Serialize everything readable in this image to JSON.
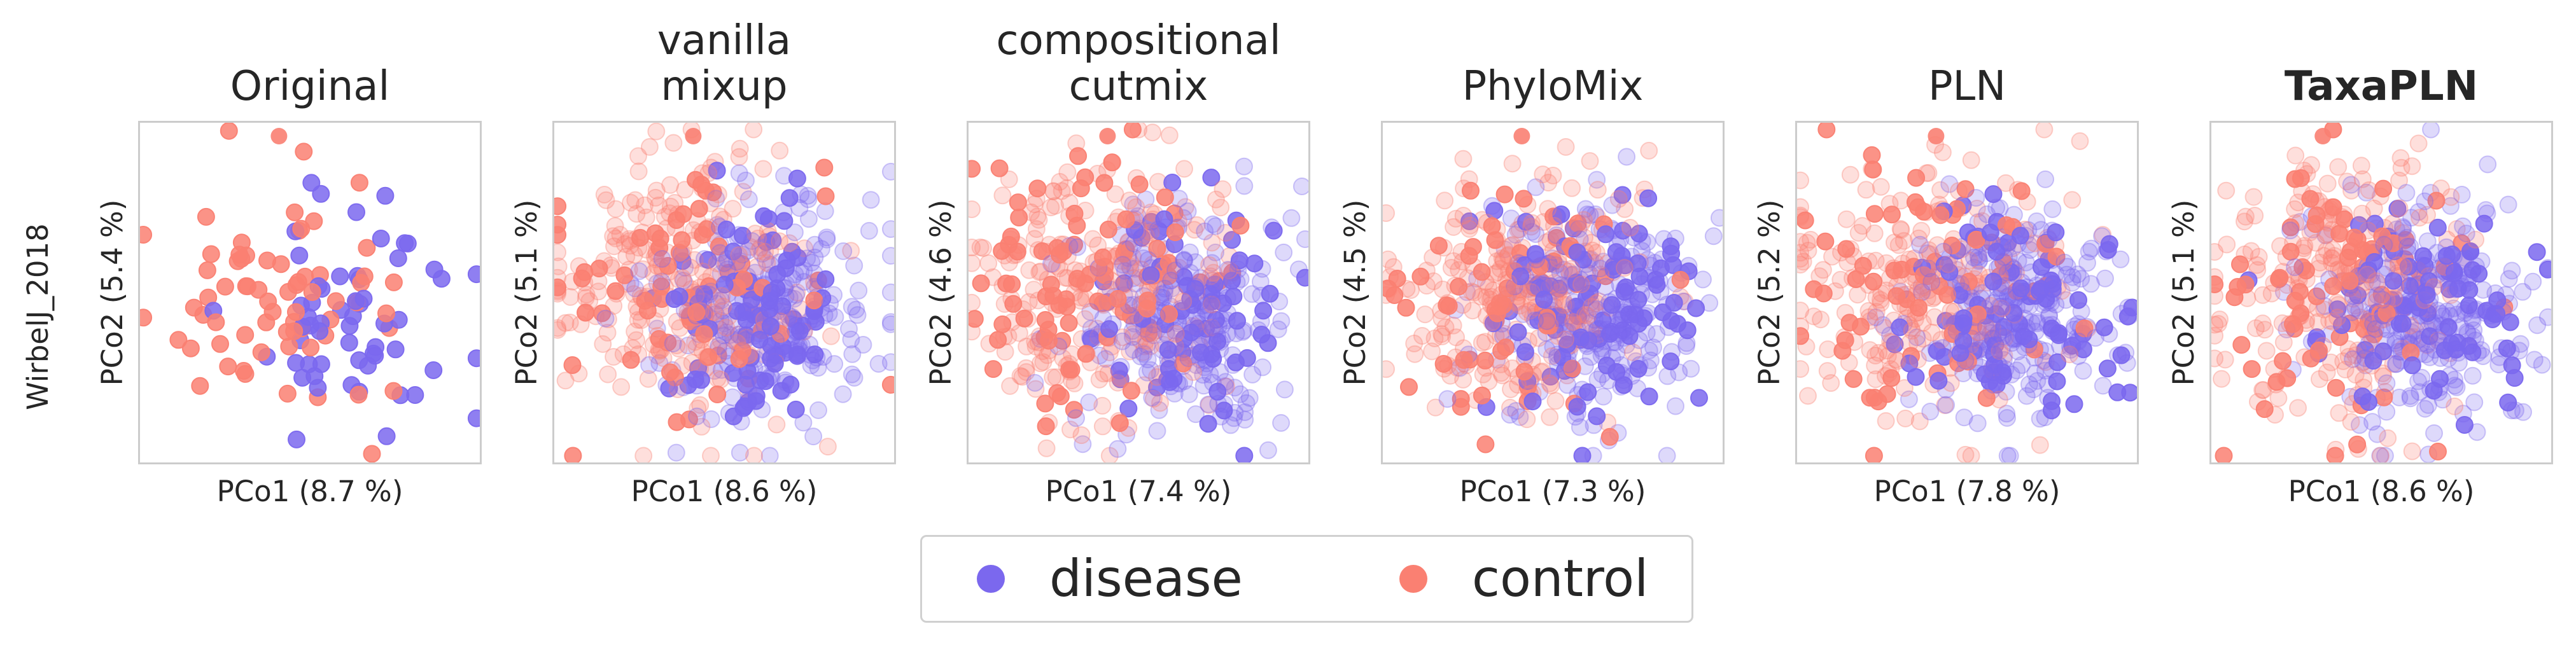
{
  "chart_data": {
    "type": "scatter",
    "row_label": "WirbelJ_2018",
    "colors": {
      "disease": "#7b68ee",
      "control": "#fa8072"
    },
    "legend": {
      "placement": "bottom-center",
      "entries": [
        "disease",
        "control"
      ]
    },
    "panels": [
      {
        "title": "Original",
        "bold": false,
        "xlabel": "PCo1 (8.7 %)",
        "ylabel": "PCo2 (5.4 %)",
        "xlim": [
          -1,
          1
        ],
        "ylim": [
          -1,
          1
        ],
        "n_points": 125,
        "synthetic": false,
        "seed": 11
      },
      {
        "title": "vanilla\nmixup",
        "bold": false,
        "xlabel": "PCo1 (8.6 %)",
        "ylabel": "PCo2 (5.1 %)",
        "xlim": [
          -1,
          1
        ],
        "ylim": [
          -1,
          1
        ],
        "n_points": 620,
        "synthetic": true,
        "seed": 23
      },
      {
        "title": "compositional\ncutmix",
        "bold": false,
        "xlabel": "PCo1 (7.4 %)",
        "ylabel": "PCo2 (4.6 %)",
        "xlim": [
          -1,
          1
        ],
        "ylim": [
          -1,
          1
        ],
        "n_points": 620,
        "synthetic": true,
        "seed": 37
      },
      {
        "title": "PhyloMix",
        "bold": false,
        "xlabel": "PCo1 (7.3 %)",
        "ylabel": "PCo2 (4.5 %)",
        "xlim": [
          -1,
          1
        ],
        "ylim": [
          -1,
          1
        ],
        "n_points": 620,
        "synthetic": true,
        "seed": 41
      },
      {
        "title": "PLN",
        "bold": false,
        "xlabel": "PCo1 (7.8 %)",
        "ylabel": "PCo2 (5.2 %)",
        "xlim": [
          -1,
          1
        ],
        "ylim": [
          -1,
          1
        ],
        "n_points": 620,
        "synthetic": true,
        "seed": 53
      },
      {
        "title": "TaxaPLN",
        "bold": true,
        "xlabel": "PCo1 (8.6 %)",
        "ylabel": "PCo2 (5.1 %)",
        "xlim": [
          -1,
          1
        ],
        "ylim": [
          -1,
          1
        ],
        "n_points": 620,
        "synthetic": true,
        "seed": 67
      }
    ]
  }
}
